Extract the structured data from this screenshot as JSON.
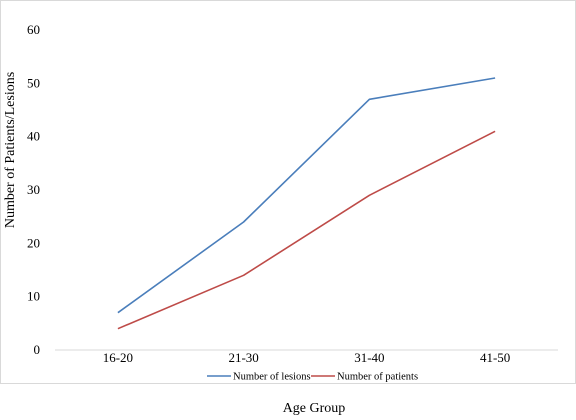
{
  "chart_data": {
    "type": "line",
    "title": "",
    "xlabel": "Age Group",
    "ylabel": "Number of Patients/Lesions",
    "categories": [
      "16-20",
      "21-30",
      "31-40",
      "41-50"
    ],
    "ylim": [
      0,
      60
    ],
    "yticks": [
      0,
      10,
      20,
      30,
      40,
      50,
      60
    ],
    "grid": false,
    "legend_position": "bottom",
    "series": [
      {
        "name": "Number of lesions",
        "color": "#4a7ebb",
        "values": [
          7,
          24,
          47,
          51
        ]
      },
      {
        "name": "Number of patients",
        "color": "#be4b48",
        "values": [
          4,
          14,
          29,
          41
        ]
      }
    ]
  }
}
